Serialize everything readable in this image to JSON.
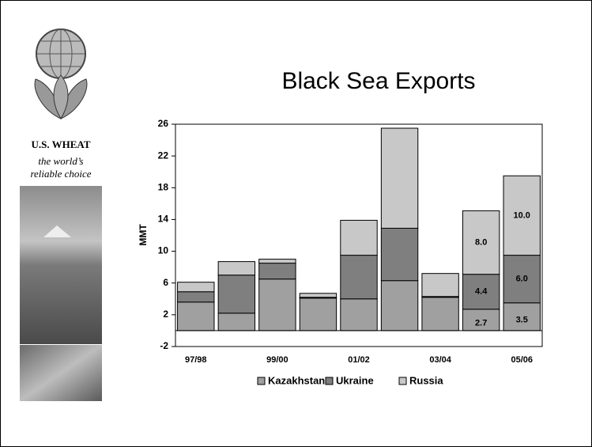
{
  "brand": {
    "name": "U.S. WHEAT",
    "tagline_1": "the world’s",
    "tagline_2": "reliable choice"
  },
  "chart_data": {
    "type": "stacked-bar",
    "title": "Black Sea Exports",
    "y_label": "MMT",
    "categories": [
      "97/98",
      null,
      "99/00",
      null,
      "01/02",
      null,
      "03/04",
      null,
      "05/06"
    ],
    "series": [
      {
        "name": "Kazakhstan",
        "color": "#a0a0a0",
        "values": [
          3.6,
          2.2,
          6.5,
          4.1,
          4.0,
          6.3,
          4.2,
          2.7,
          3.5
        ],
        "value_labels": [
          null,
          null,
          null,
          null,
          null,
          null,
          null,
          "2.7",
          "3.5"
        ]
      },
      {
        "name": "Ukraine",
        "color": "#7f7f7f",
        "values": [
          1.3,
          4.8,
          2.0,
          0.1,
          5.5,
          6.6,
          0.1,
          4.4,
          6.0
        ],
        "value_labels": [
          null,
          null,
          null,
          null,
          null,
          null,
          null,
          "4.4",
          "6.0"
        ]
      },
      {
        "name": "Russia",
        "color": "#c8c8c8",
        "values": [
          1.2,
          1.7,
          0.5,
          0.5,
          4.4,
          12.6,
          2.9,
          8.0,
          10.0
        ],
        "value_labels": [
          null,
          null,
          null,
          null,
          null,
          null,
          null,
          "8.0",
          "10.0"
        ]
      }
    ],
    "ylim": [
      -2,
      26
    ],
    "yticks": [
      -2,
      2,
      6,
      10,
      14,
      18,
      22,
      26
    ]
  }
}
